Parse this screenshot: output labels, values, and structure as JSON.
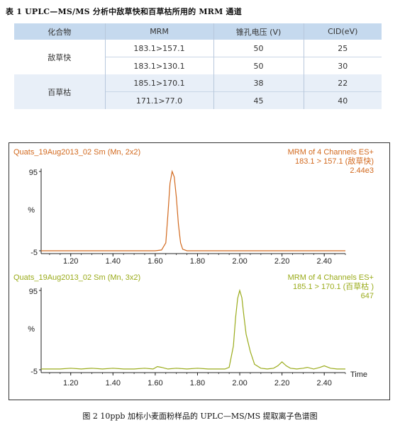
{
  "table": {
    "caption": "表 1  UPLC—MS/MS 分析中敌草快和百草枯所用的 MRM 通道",
    "headers": [
      "化合物",
      "MRM",
      "锥孔电压 (V)",
      "CID(eV)"
    ],
    "groups": [
      {
        "compound": "敌草快",
        "rows": [
          {
            "mrm": "183.1>157.1",
            "voltage": "50",
            "cid": "25"
          },
          {
            "mrm": "183.1>130.1",
            "voltage": "50",
            "cid": "30"
          }
        ]
      },
      {
        "compound": "百草枯",
        "rows": [
          {
            "mrm": "185.1>170.1",
            "voltage": "38",
            "cid": "22"
          },
          {
            "mrm": "171.1>77.0",
            "voltage": "45",
            "cid": "40"
          }
        ]
      }
    ]
  },
  "figure": {
    "caption": "图 2  10ppb 加标小麦面粉样品的 UPLC—MS/MS 提取离子色谱图",
    "x_axis_label": "Time"
  },
  "chart_data": [
    {
      "type": "line",
      "header_left": "Quats_19Aug2013_02 Sm (Mn, 2x2)",
      "header_right": [
        "MRM of 4 Channels ES+",
        "183.1 > 157.1 (敌草快)",
        "2.44e3"
      ],
      "color": "#d2691e",
      "ylabel": "%",
      "yticks": [
        "95",
        "-5"
      ],
      "ylim": [
        -5,
        95
      ],
      "xlim": [
        1.06,
        2.5
      ],
      "xticks": [
        "1.20",
        "1.40",
        "1.60",
        "1.80",
        "2.00",
        "2.20",
        "2.40"
      ],
      "x": [
        1.06,
        1.6,
        1.63,
        1.65,
        1.66,
        1.67,
        1.68,
        1.69,
        1.7,
        1.71,
        1.72,
        1.73,
        1.75,
        1.78,
        2.5
      ],
      "y": [
        -5,
        -5,
        -4,
        5,
        40,
        80,
        95,
        88,
        62,
        28,
        5,
        -3,
        -5,
        -5,
        -5
      ]
    },
    {
      "type": "line",
      "header_left": "Quats_19Aug2013_02 Sm (Mn, 3x2)",
      "header_right": [
        "MRM of 4 Channels ES+",
        "185.1 > 170.1 (百草枯 )",
        "647"
      ],
      "color": "#9aab1a",
      "ylabel": "%",
      "yticks": [
        "95",
        "-5"
      ],
      "ylim": [
        -5,
        95
      ],
      "xlim": [
        1.06,
        2.5
      ],
      "xticks": [
        "1.20",
        "1.40",
        "1.60",
        "1.80",
        "2.00",
        "2.20",
        "2.40"
      ],
      "x": [
        1.06,
        1.15,
        1.2,
        1.25,
        1.3,
        1.35,
        1.4,
        1.45,
        1.5,
        1.55,
        1.59,
        1.61,
        1.63,
        1.66,
        1.7,
        1.75,
        1.8,
        1.85,
        1.9,
        1.93,
        1.95,
        1.97,
        1.98,
        1.99,
        2.0,
        2.01,
        2.02,
        2.03,
        2.05,
        2.07,
        2.1,
        2.13,
        2.16,
        2.18,
        2.2,
        2.22,
        2.24,
        2.27,
        2.3,
        2.32,
        2.35,
        2.38,
        2.4,
        2.43,
        2.46,
        2.5
      ],
      "y": [
        -4,
        -4,
        -3,
        -4,
        -3,
        -4,
        -3,
        -4,
        -4,
        -3,
        -4,
        -1,
        -2,
        -4,
        -3,
        -4,
        -3,
        -4,
        -4,
        -4,
        -2,
        25,
        60,
        85,
        95,
        86,
        62,
        40,
        18,
        2,
        -3,
        -4,
        -3,
        0,
        5,
        0,
        -3,
        -4,
        -3,
        -2,
        -4,
        -2,
        0,
        -3,
        -4,
        -4
      ]
    }
  ]
}
